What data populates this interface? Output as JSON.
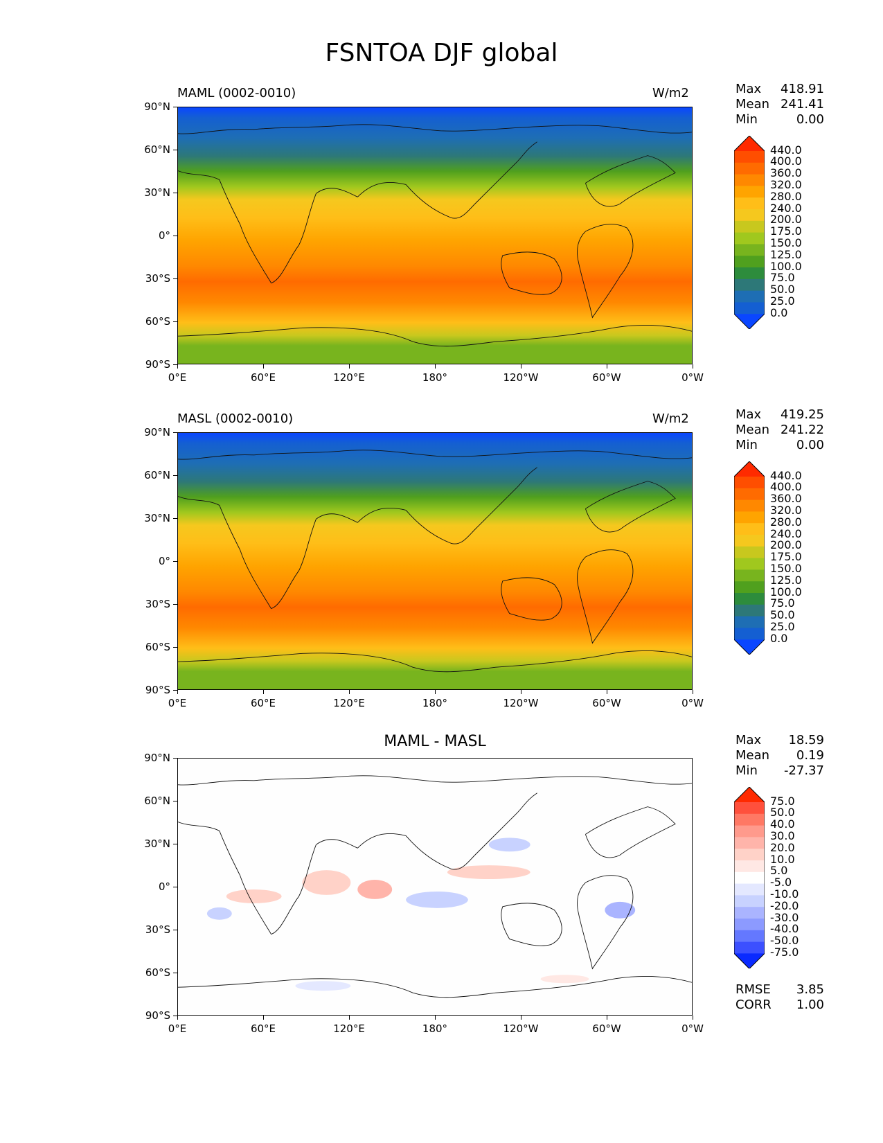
{
  "title": "FSNTOA DJF global",
  "panels": [
    {
      "id": "maml",
      "left_title": "MAML (0002-0010)",
      "units": "W/m2",
      "stats": {
        "max_label": "Max",
        "max": "418.91",
        "mean_label": "Mean",
        "mean": "241.41",
        "min_label": "Min",
        "min": "0.00"
      },
      "colorbar": {
        "levels": [
          "440.0",
          "400.0",
          "360.0",
          "320.0",
          "280.0",
          "240.0",
          "200.0",
          "175.0",
          "150.0",
          "125.0",
          "100.0",
          "75.0",
          "50.0",
          "25.0",
          "0.0"
        ],
        "colors": [
          "#ff2a00",
          "#ff4e00",
          "#ff6b00",
          "#ff8800",
          "#ffa400",
          "#ffbe18",
          "#f5c81e",
          "#c8c81e",
          "#a0c81e",
          "#78b41e",
          "#50a01e",
          "#2d8c3c",
          "#2d7878",
          "#1e6eb4",
          "#145fd2",
          "#0a46ff"
        ]
      }
    },
    {
      "id": "masl",
      "left_title": "MASL (0002-0010)",
      "units": "W/m2",
      "stats": {
        "max_label": "Max",
        "max": "419.25",
        "mean_label": "Mean",
        "mean": "241.22",
        "min_label": "Min",
        "min": "0.00"
      },
      "colorbar": {
        "levels": [
          "440.0",
          "400.0",
          "360.0",
          "320.0",
          "280.0",
          "240.0",
          "200.0",
          "175.0",
          "150.0",
          "125.0",
          "100.0",
          "75.0",
          "50.0",
          "25.0",
          "0.0"
        ],
        "colors": [
          "#ff2a00",
          "#ff4e00",
          "#ff6b00",
          "#ff8800",
          "#ffa400",
          "#ffbe18",
          "#f5c81e",
          "#c8c81e",
          "#a0c81e",
          "#78b41e",
          "#50a01e",
          "#2d8c3c",
          "#2d7878",
          "#1e6eb4",
          "#145fd2",
          "#0a46ff"
        ]
      }
    },
    {
      "id": "diff",
      "center_title": "MAML - MASL",
      "stats": {
        "max_label": "Max",
        "max": "18.59",
        "mean_label": "Mean",
        "mean": "0.19",
        "min_label": "Min",
        "min": "-27.37"
      },
      "extra_stats": {
        "rmse_label": "RMSE",
        "rmse": "3.85",
        "corr_label": "CORR",
        "corr": "1.00"
      },
      "colorbar": {
        "levels": [
          "75.0",
          "50.0",
          "40.0",
          "30.0",
          "20.0",
          "10.0",
          "5.0",
          "-5.0",
          "-10.0",
          "-20.0",
          "-30.0",
          "-40.0",
          "-50.0",
          "-75.0"
        ],
        "colors": [
          "#ff2a00",
          "#ff503c",
          "#ff7864",
          "#ff9a8c",
          "#ffb4aa",
          "#ffd2c8",
          "#ffe8e4",
          "#ffffff",
          "#e4e8ff",
          "#c8d2ff",
          "#aab4ff",
          "#8c9aff",
          "#6478ff",
          "#3c50ff",
          "#0a2aff"
        ]
      }
    }
  ],
  "axes": {
    "lat_ticks": [
      "90°N",
      "60°N",
      "30°N",
      "0°",
      "30°S",
      "60°S",
      "90°S"
    ],
    "lon_ticks": [
      "0°E",
      "60°E",
      "120°E",
      "180°",
      "120°W",
      "60°W",
      "0°W"
    ]
  }
}
